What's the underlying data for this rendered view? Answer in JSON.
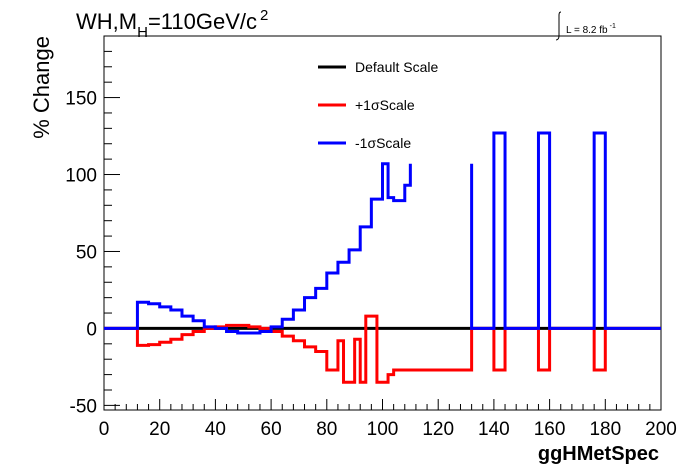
{
  "chart_data": {
    "type": "line",
    "title": {
      "prefix": "WH,M",
      "subscript": "H",
      "rest": "=110GeV/c",
      "superscript": "2"
    },
    "lumi": {
      "text": "L = 8.2 fb",
      "superscript": "-1"
    },
    "xlabel": "ggHMetSpec",
    "ylabel": "% Change",
    "xlim": [
      0,
      200
    ],
    "ylim": [
      -53,
      190
    ],
    "x_ticks": [
      0,
      20,
      40,
      60,
      80,
      100,
      120,
      140,
      160,
      180,
      200
    ],
    "y_ticks": [
      -50,
      0,
      50,
      100,
      150
    ],
    "grid": false,
    "legend_position": "top-center",
    "series": [
      {
        "name": "Default Scale",
        "color": "#000000",
        "points": [
          [
            0,
            0
          ],
          [
            200,
            0
          ]
        ]
      },
      {
        "name": "+1σScale",
        "color": "#ff0000",
        "points": [
          [
            0,
            0
          ],
          [
            12,
            0
          ],
          [
            12,
            -11
          ],
          [
            16,
            -11
          ],
          [
            16,
            -10.5
          ],
          [
            20,
            -10.5
          ],
          [
            20,
            -9
          ],
          [
            24,
            -9
          ],
          [
            24,
            -7
          ],
          [
            28,
            -7
          ],
          [
            28,
            -4
          ],
          [
            32,
            -4
          ],
          [
            32,
            -2
          ],
          [
            36,
            -2
          ],
          [
            36,
            0
          ],
          [
            40,
            0
          ],
          [
            40,
            1
          ],
          [
            44,
            1
          ],
          [
            44,
            2
          ],
          [
            52,
            2
          ],
          [
            52,
            1
          ],
          [
            56,
            1
          ],
          [
            56,
            0
          ],
          [
            60,
            0
          ],
          [
            60,
            -2
          ],
          [
            64,
            -2
          ],
          [
            64,
            -5
          ],
          [
            68,
            -5
          ],
          [
            68,
            -8
          ],
          [
            72,
            -8
          ],
          [
            72,
            -12
          ],
          [
            76,
            -12
          ],
          [
            76,
            -15
          ],
          [
            80,
            -15
          ],
          [
            80,
            -27
          ],
          [
            84,
            -27
          ],
          [
            84,
            -8
          ],
          [
            86,
            -8
          ],
          [
            86,
            -35
          ],
          [
            90,
            -35
          ],
          [
            90,
            -7
          ],
          [
            92,
            -7
          ],
          [
            92,
            -35
          ],
          [
            94,
            -35
          ],
          [
            94,
            8
          ],
          [
            98,
            8
          ],
          [
            98,
            -35
          ],
          [
            102,
            -35
          ],
          [
            102,
            -30
          ],
          [
            104,
            -30
          ],
          [
            104,
            -27
          ],
          [
            132,
            -27
          ],
          [
            132,
            0
          ],
          [
            140,
            0
          ],
          [
            140,
            -27
          ],
          [
            144,
            -27
          ],
          [
            144,
            0
          ],
          [
            156,
            0
          ],
          [
            156,
            -27
          ],
          [
            160,
            -27
          ],
          [
            160,
            0
          ],
          [
            176,
            0
          ],
          [
            176,
            -27
          ],
          [
            180,
            -27
          ],
          [
            180,
            0
          ],
          [
            200,
            0
          ]
        ]
      },
      {
        "name": "-1σScale",
        "color": "#0000ff",
        "points": [
          [
            0,
            0
          ],
          [
            12,
            0
          ],
          [
            12,
            17
          ],
          [
            16,
            17
          ],
          [
            16,
            16
          ],
          [
            20,
            16
          ],
          [
            20,
            14
          ],
          [
            24,
            14
          ],
          [
            24,
            12
          ],
          [
            28,
            12
          ],
          [
            28,
            8
          ],
          [
            32,
            8
          ],
          [
            32,
            5
          ],
          [
            36,
            5
          ],
          [
            36,
            1
          ],
          [
            40,
            1
          ],
          [
            40,
            0
          ],
          [
            44,
            0
          ],
          [
            44,
            -2
          ],
          [
            48,
            -2
          ],
          [
            48,
            -3
          ],
          [
            56,
            -3
          ],
          [
            56,
            -2
          ],
          [
            60,
            -2
          ],
          [
            60,
            1
          ],
          [
            64,
            1
          ],
          [
            64,
            6
          ],
          [
            68,
            6
          ],
          [
            68,
            12
          ],
          [
            72,
            12
          ],
          [
            72,
            20
          ],
          [
            76,
            20
          ],
          [
            76,
            26
          ],
          [
            80,
            26
          ],
          [
            80,
            36
          ],
          [
            84,
            36
          ],
          [
            84,
            43
          ],
          [
            88,
            43
          ],
          [
            88,
            51
          ],
          [
            92,
            51
          ],
          [
            92,
            66
          ],
          [
            96,
            66
          ],
          [
            96,
            84
          ],
          [
            100,
            84
          ],
          [
            100,
            107
          ],
          [
            102,
            107
          ],
          [
            102,
            85
          ],
          [
            104,
            85
          ],
          [
            104,
            83
          ],
          [
            108,
            83
          ],
          [
            108,
            93
          ],
          [
            110,
            93
          ],
          [
            110,
            107
          ]
        ],
        "segments_after_gap": [
          [
            [
              132,
              107
            ],
            [
              132,
              0
            ],
            [
              140,
              0
            ],
            [
              140,
              127
            ],
            [
              144,
              127
            ],
            [
              144,
              0
            ],
            [
              156,
              0
            ],
            [
              156,
              127
            ],
            [
              160,
              127
            ],
            [
              160,
              0
            ],
            [
              176,
              0
            ],
            [
              176,
              127
            ],
            [
              180,
              127
            ],
            [
              180,
              0
            ],
            [
              200,
              0
            ]
          ]
        ]
      }
    ]
  }
}
